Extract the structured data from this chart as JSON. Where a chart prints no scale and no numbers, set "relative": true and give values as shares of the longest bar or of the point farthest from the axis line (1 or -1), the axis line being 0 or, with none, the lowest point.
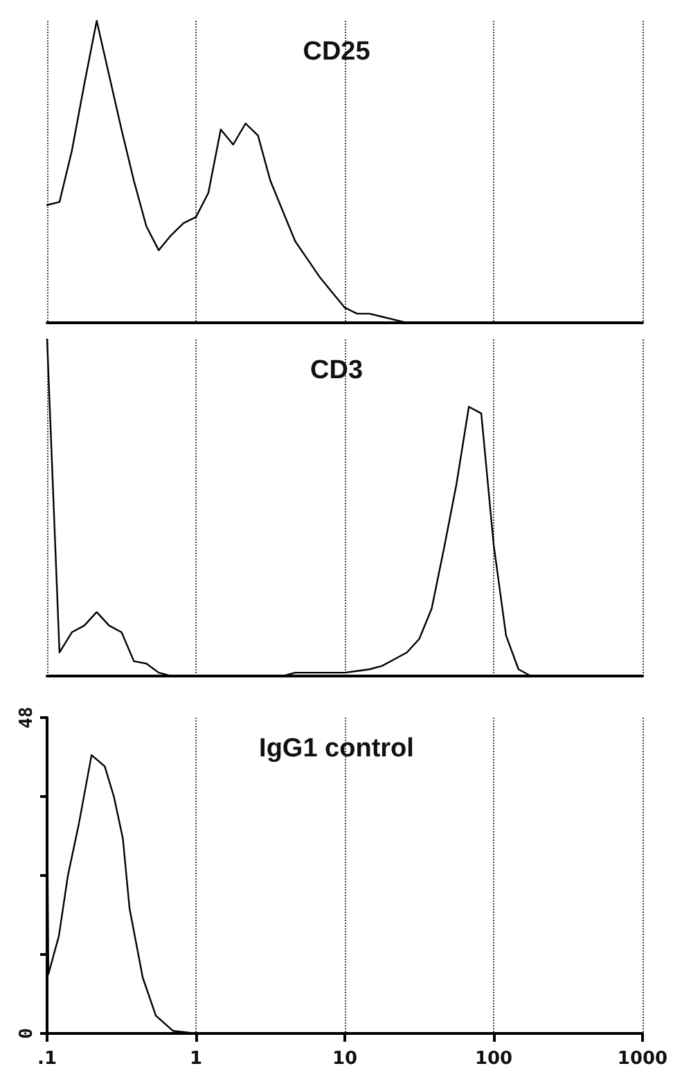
{
  "chart_data": [
    {
      "type": "line",
      "title": "CD25",
      "relative": true,
      "marker": "none",
      "grid": "x",
      "categories": [
        null,
        null,
        null,
        null,
        null,
        null,
        null,
        null,
        null,
        null,
        null,
        null,
        null,
        null,
        null,
        null,
        null,
        null,
        null,
        null,
        null,
        null,
        null,
        null,
        null,
        null,
        null,
        null,
        null,
        null,
        null,
        null,
        null,
        null,
        null,
        null,
        null,
        null,
        null,
        null,
        null,
        null,
        null,
        null,
        null,
        null,
        null,
        null,
        null
      ],
      "series": [
        {
          "color": "#000000",
          "values": [
            0.39,
            0.4,
            0.57,
            0.79,
            1.0,
            0.82,
            0.64,
            0.47,
            0.32,
            0.24,
            0.29,
            0.33,
            0.35,
            0.43,
            0.64,
            0.59,
            0.66,
            0.62,
            0.47,
            0.37,
            0.27,
            0.21,
            0.15,
            0.1,
            0.05,
            0.03,
            0.03,
            0.02,
            0.01,
            0,
            0,
            0,
            0,
            0,
            0,
            0,
            0,
            0,
            0,
            0,
            0,
            0,
            0,
            0,
            0,
            0,
            0,
            0,
            0
          ]
        }
      ]
    },
    {
      "type": "line",
      "title": "CD3",
      "relative": true,
      "marker": "none",
      "grid": "x",
      "categories": [
        null,
        null,
        null,
        null,
        null,
        null,
        null,
        null,
        null,
        null,
        null,
        null,
        null,
        null,
        null,
        null,
        null,
        null,
        null,
        null,
        null,
        null,
        null,
        null,
        null,
        null,
        null,
        null,
        null,
        null,
        null,
        null,
        null,
        null,
        null,
        null,
        null,
        null,
        null,
        null,
        null,
        null,
        null,
        null,
        null,
        null,
        null,
        null,
        null
      ],
      "series": [
        {
          "color": "#000000",
          "values": [
            1.0,
            0.07,
            0.13,
            0.15,
            0.19,
            0.15,
            0.13,
            0.044,
            0.037,
            0.01,
            0,
            0,
            0,
            0,
            0,
            0,
            0,
            0,
            0,
            0,
            0.01,
            0.01,
            0.01,
            0.01,
            0.01,
            0.015,
            0.02,
            0.03,
            0.05,
            0.07,
            0.11,
            0.2,
            0.38,
            0.57,
            0.8,
            0.78,
            0.39,
            0.12,
            0.02,
            0,
            0,
            0,
            0,
            0,
            0,
            0,
            0,
            0,
            0
          ]
        }
      ]
    },
    {
      "type": "line",
      "title": "IgG1 control",
      "marker": "none",
      "grid": "x",
      "log": "x",
      "xlim": [
        0.1,
        1000
      ],
      "xticks": [
        {
          "value": 0.1,
          "label": ".1"
        },
        1,
        10,
        100,
        1000
      ],
      "ylim": [
        0,
        48
      ],
      "yticks": [
        0,
        {
          "value": 12,
          "label": null
        },
        {
          "value": 24,
          "label": null
        },
        {
          "value": 36,
          "label": null
        },
        48
      ],
      "series": [
        {
          "color": "#000000",
          "x": [
            0.1,
            0.102,
            0.12,
            0.138,
            0.163,
            0.199,
            0.244,
            0.281,
            0.323,
            0.358,
            0.439,
            0.538,
            0.7,
            1,
            1000
          ],
          "values": [
            38,
            9,
            14.8,
            24,
            31.7,
            42.3,
            40.6,
            36,
            29.6,
            19,
            8.5,
            2.7,
            0.4,
            0,
            0
          ]
        }
      ]
    }
  ]
}
